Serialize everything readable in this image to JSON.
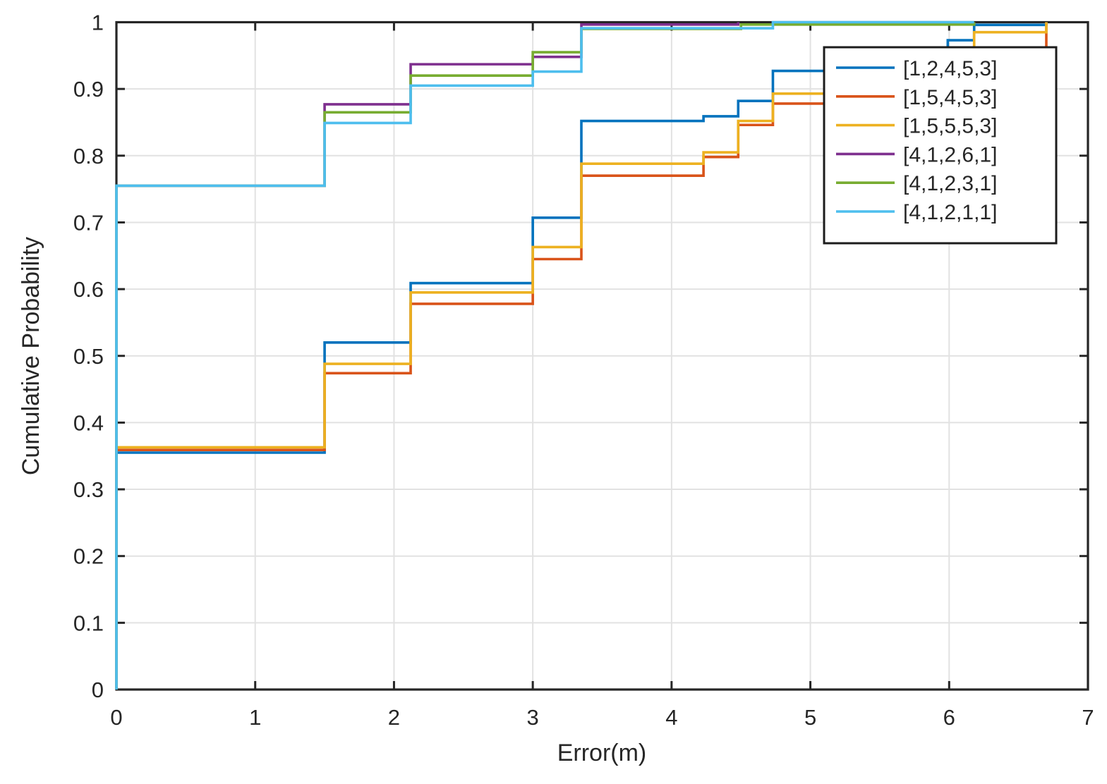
{
  "figure_title": "",
  "chart_data": {
    "type": "line",
    "subtype": "step-cdf",
    "title": "",
    "xlabel": "Error(m)",
    "ylabel": "Cumulative Probability",
    "xlim": [
      0,
      7
    ],
    "ylim": [
      0,
      1
    ],
    "x_ticks": [
      0,
      1,
      2,
      3,
      4,
      5,
      6,
      7
    ],
    "x_tick_labels": [
      "0",
      "1",
      "2",
      "3",
      "4",
      "5",
      "6",
      "7"
    ],
    "y_ticks": [
      0,
      0.1,
      0.2,
      0.3,
      0.4,
      0.5,
      0.6,
      0.7,
      0.8,
      0.9,
      1
    ],
    "y_tick_labels": [
      "0",
      "0.1",
      "0.2",
      "0.3",
      "0.4",
      "0.5",
      "0.6",
      "0.7",
      "0.8",
      "0.9",
      "1"
    ],
    "grid": true,
    "legend_position": "northeast",
    "axis_color": "#262626",
    "grid_color": "#e2e2e2",
    "background": "#ffffff",
    "series": [
      {
        "label": "[1,2,4,5,3]",
        "color": "#0072BD",
        "steps": [
          [
            0,
            0.355
          ],
          [
            1.5,
            0.52
          ],
          [
            2.12,
            0.609
          ],
          [
            3.0,
            0.707
          ],
          [
            3.35,
            0.852
          ],
          [
            4.23,
            0.859
          ],
          [
            4.48,
            0.882
          ],
          [
            4.73,
            0.927
          ],
          [
            5.5,
            0.95
          ],
          [
            5.99,
            0.973
          ],
          [
            6.18,
            0.996
          ],
          [
            6.7,
            1.0
          ]
        ],
        "x_end": 6.7
      },
      {
        "label": "[1,5,4,5,3]",
        "color": "#D95319",
        "steps": [
          [
            0,
            0.359
          ],
          [
            1.5,
            0.474
          ],
          [
            2.12,
            0.578
          ],
          [
            3.0,
            0.645
          ],
          [
            3.35,
            0.77
          ],
          [
            4.23,
            0.798
          ],
          [
            4.48,
            0.846
          ],
          [
            4.73,
            0.878
          ],
          [
            5.3,
            0.91
          ],
          [
            5.8,
            0.94
          ],
          [
            6.3,
            0.955
          ],
          [
            6.7,
            1.0
          ]
        ],
        "x_end": 6.7
      },
      {
        "label": "[1,5,5,5,3]",
        "color": "#EDB120",
        "steps": [
          [
            0,
            0.363
          ],
          [
            1.5,
            0.488
          ],
          [
            2.12,
            0.595
          ],
          [
            3.0,
            0.663
          ],
          [
            3.35,
            0.788
          ],
          [
            4.23,
            0.805
          ],
          [
            4.48,
            0.852
          ],
          [
            4.73,
            0.893
          ],
          [
            5.4,
            0.93
          ],
          [
            5.9,
            0.955
          ],
          [
            6.18,
            0.985
          ],
          [
            6.7,
            1.0
          ]
        ],
        "x_end": 6.7
      },
      {
        "label": "[4,1,2,6,1]",
        "color": "#7E2F8E",
        "steps": [
          [
            0,
            0.755
          ],
          [
            1.5,
            0.877
          ],
          [
            2.12,
            0.937
          ],
          [
            3.0,
            0.948
          ],
          [
            3.35,
            0.9965
          ],
          [
            4.48,
            1.0
          ]
        ],
        "x_end": 4.48
      },
      {
        "label": "[4,1,2,3,1]",
        "color": "#77AC30",
        "steps": [
          [
            0,
            0.755
          ],
          [
            1.5,
            0.865
          ],
          [
            2.12,
            0.92
          ],
          [
            3.0,
            0.955
          ],
          [
            3.35,
            0.99
          ],
          [
            4.5,
            0.9965
          ],
          [
            6.18,
            1.0
          ]
        ],
        "x_end": 6.18
      },
      {
        "label": "[4,1,2,1,1]",
        "color": "#4DBEEE",
        "steps": [
          [
            0,
            0.755
          ],
          [
            1.5,
            0.849
          ],
          [
            2.12,
            0.905
          ],
          [
            3.0,
            0.926
          ],
          [
            3.35,
            0.991
          ],
          [
            4.73,
            1.0
          ]
        ],
        "x_end": 6.18
      }
    ]
  },
  "legend": {
    "entries": [
      "[1,2,4,5,3]",
      "[1,5,4,5,3]",
      "[1,5,5,5,3]",
      "[4,1,2,6,1]",
      "[4,1,2,3,1]",
      "[4,1,2,1,1]"
    ]
  }
}
